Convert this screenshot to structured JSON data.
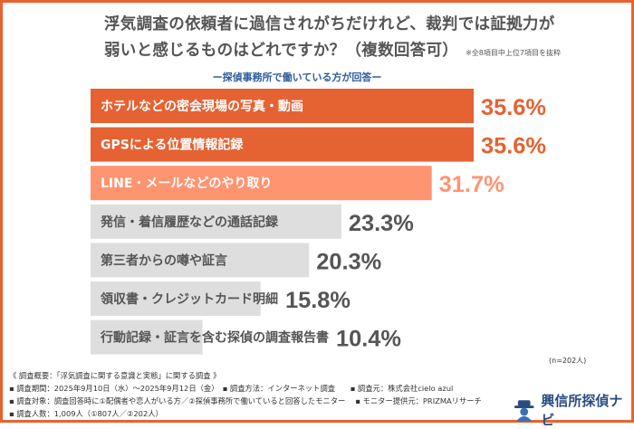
{
  "title_line1": "浮気調査の依頼者に過信されがちだけれど、裁判では証拠力が",
  "title_line2": "弱いと感じるものはどれですか？（複数回答可）",
  "title_note": "※全8項目中上位7項目を抜粋",
  "subtitle": "ー探偵事務所で働いている方が回答ー",
  "sample_size": "(n=202人)",
  "colors": {
    "top": "#E56233",
    "mid": "#FF9470",
    "rest": "#DEDEDE",
    "border": "#E8622F"
  },
  "chart_data": {
    "type": "bar",
    "orientation": "horizontal",
    "unit": "%",
    "xlim": [
      0,
      35.6
    ],
    "categories": [
      "ホテルなどの密会現場の写真・動画",
      "GPSによる位置情報記録",
      "LINE・メールなどのやり取り",
      "発信・着信履歴などの通話記録",
      "第三者からの噂や証言",
      "領収書・クレジットカード明細",
      "行動記録・証言を含む探偵の調査報告書"
    ],
    "values": [
      35.6,
      35.6,
      31.7,
      23.3,
      20.3,
      15.8,
      10.4
    ],
    "labels": [
      "35.6%",
      "35.6%",
      "31.7%",
      "23.3%",
      "20.3%",
      "15.8%",
      "10.4%"
    ]
  },
  "footer": {
    "line1": "《 調査概要：「浮気調査に関する意識と実態」に関する調査 》",
    "line2": "▪ 調査期間：2025年9月10日（水）〜2025年9月12日（金）　▪ 調査方法：インターネット調査　　▪ 調査元：株式会社cielo azul",
    "line3": "▪ 調査対象：調査回答時に①配偶者や恋人がいる方／②探偵事務所で働いていると回答したモニター　 ▪ モニター提供元：PRIZMAリサーチ",
    "line4": "▪ 調査人数：1,009人（①807人／②202人）"
  },
  "logo_text": "興信所探偵ナビ"
}
